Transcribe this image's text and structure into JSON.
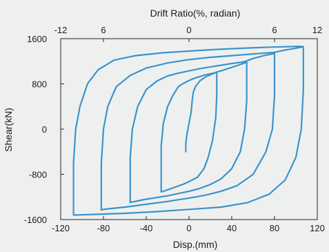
{
  "chart_data": {
    "type": "line",
    "title": "",
    "top_axis": {
      "label": "Drift Ratio(%, radian)",
      "ticks": [
        "-12",
        "6",
        "0",
        "6",
        "12"
      ],
      "tick_disp_positions": [
        -120,
        -80,
        0,
        80,
        120
      ]
    },
    "xlabel": "Disp.(mm)",
    "ylabel": "Shear(kN)",
    "xlim": [
      -120,
      120
    ],
    "ylim": [
      -1600,
      1600
    ],
    "xticks": [
      -120,
      -80,
      -40,
      0,
      40,
      80,
      120
    ],
    "yticks": [
      1600,
      800,
      0,
      -800,
      -1600
    ],
    "grid": false,
    "series_color": "#3a93cc",
    "series": [
      {
        "x": [
          -3,
          -3,
          -2,
          0,
          2,
          3,
          4,
          6,
          10,
          15,
          20,
          25,
          26,
          26,
          26,
          25,
          22,
          18,
          14,
          8,
          0,
          -6,
          -12,
          -18,
          -24,
          -26,
          -26,
          -26,
          -24,
          -20,
          -15,
          -10,
          -6,
          -3,
          0,
          5,
          10,
          15,
          20,
          25,
          26
        ],
        "y": [
          -400,
          -250,
          -100,
          100,
          300,
          500,
          650,
          750,
          850,
          920,
          960,
          1000,
          1010,
          1000,
          600,
          200,
          -200,
          -500,
          -700,
          -850,
          -930,
          -980,
          -1020,
          -1060,
          -1100,
          -1110,
          -1000,
          -300,
          100,
          400,
          600,
          750,
          800,
          830,
          860,
          900,
          930,
          960,
          980,
          1000,
          1010
        ]
      },
      {
        "x": [
          26,
          30,
          38,
          46,
          52,
          54,
          54,
          54,
          52,
          48,
          40,
          30,
          20,
          10,
          0,
          -10,
          -20,
          -30,
          -40,
          -48,
          -53,
          -55,
          -55,
          -55,
          -53,
          -48,
          -40,
          -30,
          -20,
          -10,
          0,
          10,
          20,
          30,
          40,
          48,
          53
        ],
        "y": [
          1010,
          1030,
          1080,
          1130,
          1170,
          1180,
          1000,
          500,
          0,
          -400,
          -700,
          -880,
          -980,
          -1050,
          -1100,
          -1140,
          -1180,
          -1210,
          -1240,
          -1270,
          -1290,
          -1300,
          -1100,
          -500,
          0,
          400,
          700,
          850,
          940,
          990,
          1030,
          1070,
          1100,
          1130,
          1160,
          1180,
          1200
        ]
      },
      {
        "x": [
          53,
          60,
          70,
          78,
          80,
          80,
          80,
          78,
          72,
          60,
          45,
          30,
          15,
          0,
          -20,
          -40,
          -60,
          -75,
          -80,
          -82,
          -82,
          -82,
          -80,
          -76,
          -68,
          -55,
          -40,
          -20,
          0,
          20,
          40,
          60,
          75,
          80
        ],
        "y": [
          1200,
          1250,
          1300,
          1330,
          1340,
          1200,
          600,
          0,
          -400,
          -800,
          -1000,
          -1100,
          -1170,
          -1220,
          -1280,
          -1330,
          -1380,
          -1410,
          -1420,
          -1430,
          -1200,
          -600,
          0,
          400,
          750,
          950,
          1080,
          1170,
          1230,
          1270,
          1300,
          1330,
          1350,
          1360
        ]
      },
      {
        "x": [
          80,
          90,
          100,
          105,
          107,
          107,
          107,
          105,
          100,
          90,
          75,
          55,
          30,
          0,
          -30,
          -60,
          -90,
          -105,
          -108,
          -108,
          -108,
          -106,
          -102,
          -95,
          -85,
          -70,
          -50,
          -25,
          0,
          25,
          50,
          75,
          95,
          105
        ],
        "y": [
          1360,
          1400,
          1430,
          1450,
          1460,
          1300,
          700,
          0,
          -500,
          -900,
          -1150,
          -1300,
          -1380,
          -1420,
          -1460,
          -1490,
          -1510,
          -1520,
          -1520,
          -1300,
          -600,
          0,
          400,
          800,
          1050,
          1220,
          1300,
          1350,
          1380,
          1410,
          1430,
          1450,
          1460,
          1465
        ]
      }
    ]
  }
}
